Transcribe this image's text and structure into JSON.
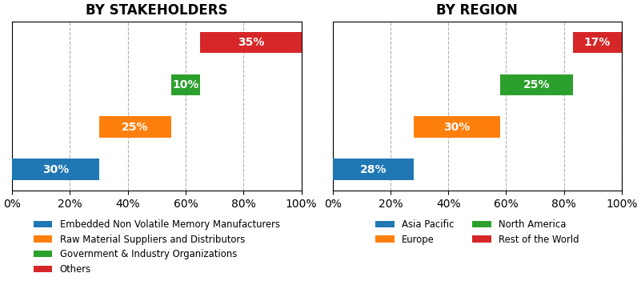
{
  "chart_data": [
    {
      "type": "waterfall",
      "orientation": "horizontal",
      "title": "BY STAKEHOLDERS",
      "categories": [
        "Embedded Non Volatile Memory Manufacturers",
        "Raw Material Suppliers and Distributors",
        "Government & Industry Organizations",
        "Others"
      ],
      "values": [
        30,
        25,
        10,
        35
      ],
      "value_labels": [
        "30%",
        "25%",
        "10%",
        "35%"
      ],
      "data_labels": true,
      "xlim": [
        0,
        100
      ],
      "xticks": [
        {
          "value": 0,
          "label": "0%"
        },
        {
          "value": 20,
          "label": "20%"
        },
        {
          "value": 40,
          "label": "40%"
        },
        {
          "value": 60,
          "label": "60%"
        },
        {
          "value": 80,
          "label": "80%"
        },
        {
          "value": 100,
          "label": "100%"
        }
      ],
      "grid": true,
      "legend": "upper center",
      "tick_labels": "x"
    },
    {
      "type": "waterfall",
      "orientation": "horizontal",
      "title": "BY REGION",
      "categories": [
        "Asia Pacific",
        "Europe",
        "North America",
        "Rest of the World"
      ],
      "values": [
        28,
        30,
        25,
        17
      ],
      "value_labels": [
        "28%",
        "30%",
        "25%",
        "17%"
      ],
      "data_labels": true,
      "xlim": [
        0,
        100
      ],
      "xticks": [
        {
          "value": 0,
          "label": "0%"
        },
        {
          "value": 20,
          "label": "20%"
        },
        {
          "value": 40,
          "label": "40%"
        },
        {
          "value": 60,
          "label": "60%"
        },
        {
          "value": 80,
          "label": "80%"
        },
        {
          "value": 100,
          "label": "100%"
        }
      ],
      "grid": true,
      "legend": "upper center",
      "tick_labels": "x"
    }
  ]
}
